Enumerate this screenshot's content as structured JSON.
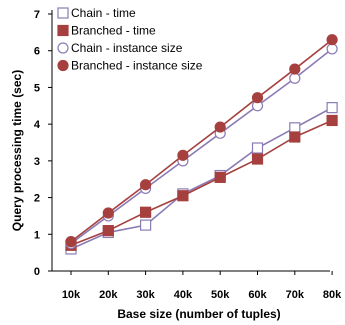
{
  "chart_data": {
    "type": "line",
    "title": "",
    "xlabel": "Base size (number of tuples)",
    "ylabel": "Query processing time (sec)",
    "categories": [
      "10k",
      "20k",
      "30k",
      "40k",
      "50k",
      "60k",
      "70k",
      "80k"
    ],
    "ylim": [
      0,
      7
    ],
    "yticks": [
      0,
      1,
      2,
      3,
      4,
      5,
      6,
      7
    ],
    "grid": false,
    "legend_position": "top-left",
    "series": [
      {
        "name": "Chain - time",
        "marker": "open-square",
        "color": "#8b7bb5",
        "values": [
          0.6,
          1.05,
          1.25,
          2.1,
          2.6,
          3.35,
          3.9,
          4.45
        ]
      },
      {
        "name": "Branched - time",
        "marker": "filled-square",
        "color": "#a6403f",
        "values": [
          0.7,
          1.1,
          1.6,
          2.05,
          2.55,
          3.05,
          3.65,
          4.1
        ]
      },
      {
        "name": "Chain - instance size",
        "marker": "open-circle",
        "color": "#8b7bb5",
        "values": [
          0.75,
          1.5,
          2.25,
          3.0,
          3.75,
          4.5,
          5.25,
          6.05
        ]
      },
      {
        "name": "Branched - instance size",
        "marker": "filled-circle",
        "color": "#a6403f",
        "values": [
          0.8,
          1.58,
          2.35,
          3.15,
          3.92,
          4.72,
          5.5,
          6.3
        ]
      }
    ]
  }
}
